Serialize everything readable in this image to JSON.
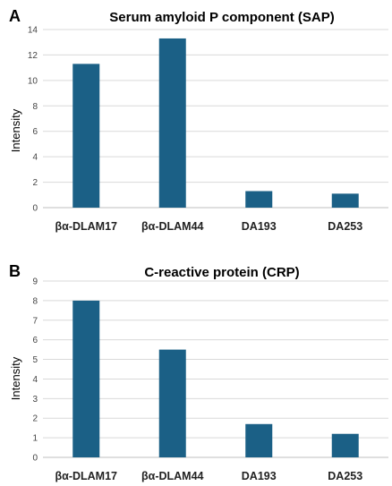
{
  "chart_data": [
    {
      "type": "bar",
      "panel": "A",
      "title": "Serum amyloid P component (SAP)",
      "xlabel": "",
      "ylabel": "Intensity",
      "categories": [
        "βα-DLAM17",
        "βα-DLAM44",
        "DA193",
        "DA253"
      ],
      "values": [
        11.3,
        13.3,
        1.3,
        1.1
      ],
      "ylim": [
        0,
        14
      ],
      "yticks": [
        0,
        2,
        4,
        6,
        8,
        10,
        12,
        14
      ],
      "grid": true,
      "bar_color": "#1b6086"
    },
    {
      "type": "bar",
      "panel": "B",
      "title": "C-reactive protein (CRP)",
      "xlabel": "",
      "ylabel": "Intensity",
      "categories": [
        "βα-DLAM17",
        "βα-DLAM44",
        "DA193",
        "DA253"
      ],
      "values": [
        8.0,
        5.5,
        1.7,
        1.2
      ],
      "ylim": [
        0,
        9
      ],
      "yticks": [
        0,
        1,
        2,
        3,
        4,
        5,
        6,
        7,
        8,
        9
      ],
      "grid": true,
      "bar_color": "#1b6086"
    }
  ]
}
